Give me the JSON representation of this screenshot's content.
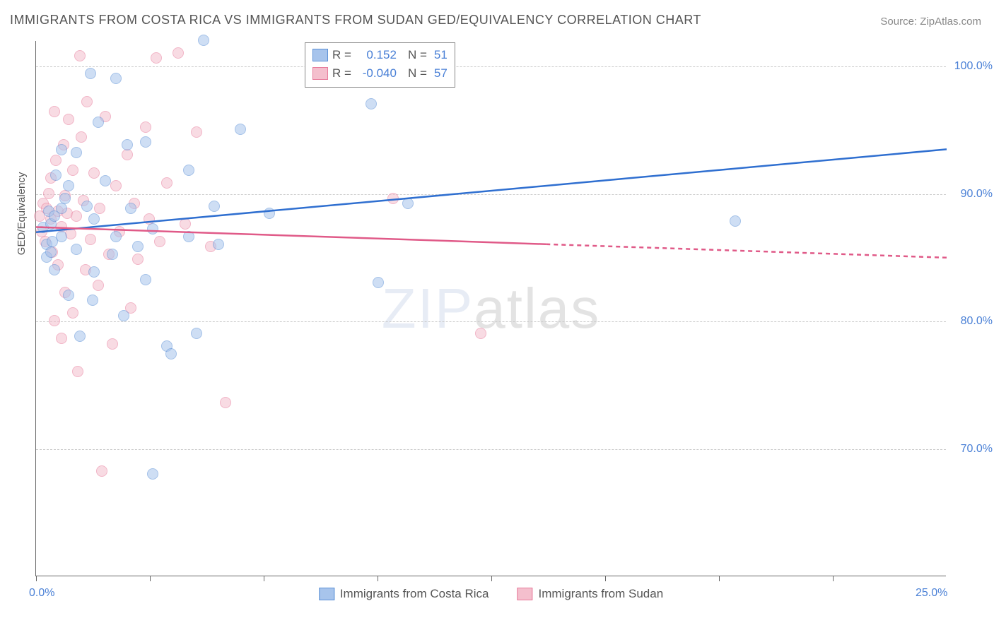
{
  "title": "IMMIGRANTS FROM COSTA RICA VS IMMIGRANTS FROM SUDAN GED/EQUIVALENCY CORRELATION CHART",
  "source_label": "Source:",
  "source_value": "ZipAtlas.com",
  "ylabel": "GED/Equivalency",
  "watermark_a": "ZIP",
  "watermark_b": "atlas",
  "chart": {
    "type": "scatter",
    "xlim": [
      0,
      25
    ],
    "ylim": [
      60,
      102
    ],
    "xtick_positions": [
      0,
      3.125,
      6.25,
      9.375,
      12.5,
      15.625,
      18.75,
      21.875
    ],
    "xlabels": [
      {
        "x": 0,
        "text": "0.0%"
      },
      {
        "x": 25,
        "text": "25.0%"
      }
    ],
    "ygrid": [
      70,
      80,
      90,
      100
    ],
    "ytick_labels": [
      "70.0%",
      "80.0%",
      "90.0%",
      "100.0%"
    ],
    "background_color": "#ffffff",
    "grid_color": "#cccccc",
    "axis_color": "#666666",
    "marker_radius": 8,
    "marker_opacity": 0.55,
    "tick_label_color": "#4a80d6"
  },
  "series": {
    "costa_rica": {
      "label": "Immigrants from Costa Rica",
      "color_fill": "#a7c4ec",
      "color_stroke": "#5a8fd6",
      "r_value": "0.152",
      "n_value": "51",
      "trend": {
        "x1": 0,
        "y1": 87.0,
        "x2": 25,
        "y2": 93.5,
        "solid_to_x": 25
      },
      "points": [
        [
          0.2,
          87.3
        ],
        [
          0.3,
          86.0
        ],
        [
          0.3,
          85.0
        ],
        [
          0.35,
          88.6
        ],
        [
          0.4,
          87.6
        ],
        [
          0.4,
          85.4
        ],
        [
          0.5,
          88.2
        ],
        [
          0.45,
          86.2
        ],
        [
          0.5,
          84.0
        ],
        [
          0.55,
          91.4
        ],
        [
          0.7,
          93.4
        ],
        [
          0.7,
          88.8
        ],
        [
          0.7,
          86.6
        ],
        [
          0.8,
          89.6
        ],
        [
          0.9,
          82.0
        ],
        [
          0.9,
          90.6
        ],
        [
          1.1,
          93.2
        ],
        [
          1.1,
          85.6
        ],
        [
          1.2,
          78.8
        ],
        [
          1.4,
          89.0
        ],
        [
          1.5,
          99.4
        ],
        [
          1.55,
          81.6
        ],
        [
          1.6,
          88.0
        ],
        [
          1.6,
          83.8
        ],
        [
          1.7,
          95.6
        ],
        [
          1.9,
          91.0
        ],
        [
          2.1,
          85.2
        ],
        [
          2.2,
          99.0
        ],
        [
          2.2,
          86.6
        ],
        [
          2.4,
          80.4
        ],
        [
          2.5,
          93.8
        ],
        [
          2.6,
          88.8
        ],
        [
          2.8,
          85.8
        ],
        [
          3.0,
          94.0
        ],
        [
          3.0,
          83.2
        ],
        [
          3.2,
          68.0
        ],
        [
          3.2,
          87.2
        ],
        [
          3.6,
          78.0
        ],
        [
          3.7,
          77.4
        ],
        [
          4.2,
          86.6
        ],
        [
          4.2,
          91.8
        ],
        [
          4.4,
          79.0
        ],
        [
          4.6,
          102.0
        ],
        [
          4.9,
          89.0
        ],
        [
          5.0,
          86.0
        ],
        [
          5.6,
          95.0
        ],
        [
          6.4,
          88.4
        ],
        [
          9.2,
          97.0
        ],
        [
          9.4,
          83.0
        ],
        [
          10.2,
          89.2
        ],
        [
          19.2,
          87.8
        ]
      ]
    },
    "sudan": {
      "label": "Immigrants from Sudan",
      "color_fill": "#f4bfcd",
      "color_stroke": "#e77a9a",
      "r_value": "-0.040",
      "n_value": "57",
      "trend": {
        "x1": 0,
        "y1": 87.4,
        "x2": 25,
        "y2": 85.0,
        "solid_to_x": 14
      },
      "points": [
        [
          0.1,
          88.2
        ],
        [
          0.15,
          87.0
        ],
        [
          0.2,
          89.2
        ],
        [
          0.25,
          86.2
        ],
        [
          0.3,
          88.8
        ],
        [
          0.35,
          90.0
        ],
        [
          0.4,
          91.2
        ],
        [
          0.4,
          88.0
        ],
        [
          0.45,
          85.4
        ],
        [
          0.5,
          80.0
        ],
        [
          0.5,
          96.4
        ],
        [
          0.55,
          92.6
        ],
        [
          0.6,
          88.6
        ],
        [
          0.6,
          84.4
        ],
        [
          0.7,
          87.4
        ],
        [
          0.7,
          78.6
        ],
        [
          0.75,
          93.8
        ],
        [
          0.8,
          89.8
        ],
        [
          0.8,
          82.2
        ],
        [
          0.85,
          88.4
        ],
        [
          0.9,
          95.8
        ],
        [
          0.95,
          86.8
        ],
        [
          1.0,
          91.8
        ],
        [
          1.0,
          80.6
        ],
        [
          1.1,
          88.2
        ],
        [
          1.15,
          76.0
        ],
        [
          1.2,
          100.8
        ],
        [
          1.25,
          94.4
        ],
        [
          1.3,
          89.4
        ],
        [
          1.35,
          84.0
        ],
        [
          1.4,
          97.2
        ],
        [
          1.5,
          86.4
        ],
        [
          1.6,
          91.6
        ],
        [
          1.7,
          82.8
        ],
        [
          1.75,
          88.8
        ],
        [
          1.8,
          68.2
        ],
        [
          1.9,
          96.0
        ],
        [
          2.0,
          85.2
        ],
        [
          2.1,
          78.2
        ],
        [
          2.2,
          90.6
        ],
        [
          2.3,
          87.0
        ],
        [
          2.5,
          93.0
        ],
        [
          2.6,
          81.0
        ],
        [
          2.7,
          89.2
        ],
        [
          2.8,
          84.8
        ],
        [
          3.0,
          95.2
        ],
        [
          3.1,
          88.0
        ],
        [
          3.3,
          100.6
        ],
        [
          3.4,
          86.2
        ],
        [
          3.6,
          90.8
        ],
        [
          3.9,
          101.0
        ],
        [
          4.1,
          87.6
        ],
        [
          4.4,
          94.8
        ],
        [
          4.8,
          85.8
        ],
        [
          5.2,
          73.6
        ],
        [
          9.8,
          89.6
        ],
        [
          12.2,
          79.0
        ]
      ]
    }
  },
  "legend_top": {
    "r_label": "R  =",
    "n_label": "N  ="
  }
}
